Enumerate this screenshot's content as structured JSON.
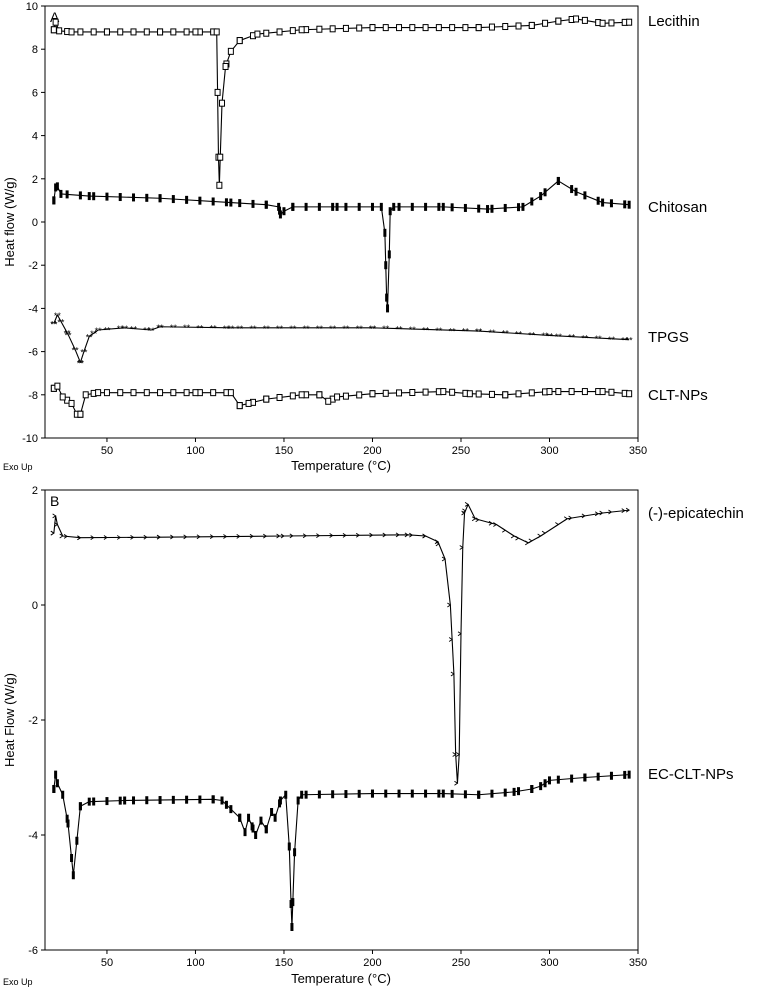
{
  "chart_data": [
    {
      "type": "line",
      "panel_label": "A",
      "xlabel": "Temperature (°C)",
      "ylabel": "Heat flow (W/g)",
      "corner_note": "Exo Up",
      "xlim": [
        15,
        350
      ],
      "ylim": [
        -10,
        10
      ],
      "xticks": [
        0,
        50,
        100,
        150,
        200,
        250,
        300,
        350
      ],
      "yticks": [
        -10,
        -8,
        -6,
        -4,
        -2,
        0,
        2,
        4,
        6,
        8,
        10
      ],
      "grid": false,
      "legend": "none",
      "series": [
        {
          "name": "Lecithin",
          "marker": "square-open",
          "points": [
            [
              20,
              8.9
            ],
            [
              21,
              9.25
            ],
            [
              23,
              8.85
            ],
            [
              30,
              8.8
            ],
            [
              50,
              8.8
            ],
            [
              80,
              8.8
            ],
            [
              100,
              8.8
            ],
            [
              112,
              8.8
            ],
            [
              112.5,
              6
            ],
            [
              113,
              3
            ],
            [
              113.5,
              1.7
            ],
            [
              114,
              3
            ],
            [
              115,
              5.5
            ],
            [
              117,
              7.2
            ],
            [
              120,
              7.9
            ],
            [
              125,
              8.4
            ],
            [
              135,
              8.7
            ],
            [
              160,
              8.9
            ],
            [
              200,
              9.0
            ],
            [
              260,
              9.0
            ],
            [
              290,
              9.1
            ],
            [
              305,
              9.3
            ],
            [
              315,
              9.4
            ],
            [
              330,
              9.2
            ],
            [
              345,
              9.25
            ]
          ]
        },
        {
          "name": "Chitosan",
          "marker": "bar",
          "points": [
            [
              20,
              1.0
            ],
            [
              21,
              1.6
            ],
            [
              22,
              1.65
            ],
            [
              24,
              1.3
            ],
            [
              40,
              1.2
            ],
            [
              80,
              1.1
            ],
            [
              120,
              0.9
            ],
            [
              140,
              0.8
            ],
            [
              147,
              0.7
            ],
            [
              148,
              0.35
            ],
            [
              150,
              0.5
            ],
            [
              155,
              0.7
            ],
            [
              180,
              0.7
            ],
            [
              205,
              0.7
            ],
            [
              207,
              -0.5
            ],
            [
              208,
              -3.5
            ],
            [
              208.5,
              -4.0
            ],
            [
              209.5,
              -1.5
            ],
            [
              210,
              0.5
            ],
            [
              212,
              0.7
            ],
            [
              240,
              0.7
            ],
            [
              265,
              0.6
            ],
            [
              285,
              0.7
            ],
            [
              295,
              1.2
            ],
            [
              305,
              1.9
            ],
            [
              315,
              1.4
            ],
            [
              330,
              0.9
            ],
            [
              345,
              0.8
            ]
          ]
        },
        {
          "name": "TPGS",
          "marker": "asterisk",
          "points": [
            [
              20,
              -4.7
            ],
            [
              22,
              -4.3
            ],
            [
              24,
              -4.6
            ],
            [
              28,
              -5.2
            ],
            [
              32,
              -5.9
            ],
            [
              35,
              -6.5
            ],
            [
              37,
              -6.0
            ],
            [
              40,
              -5.3
            ],
            [
              45,
              -5.0
            ],
            [
              60,
              -4.9
            ],
            [
              75,
              -5.0
            ],
            [
              80,
              -4.85
            ],
            [
              120,
              -4.9
            ],
            [
              200,
              -4.9
            ],
            [
              260,
              -5.05
            ],
            [
              300,
              -5.25
            ],
            [
              345,
              -5.45
            ]
          ]
        },
        {
          "name": "CLT-NPs",
          "marker": "square-open",
          "points": [
            [
              20,
              -7.7
            ],
            [
              22,
              -7.6
            ],
            [
              25,
              -8.1
            ],
            [
              30,
              -8.4
            ],
            [
              33,
              -8.9
            ],
            [
              35,
              -8.9
            ],
            [
              38,
              -8.0
            ],
            [
              45,
              -7.9
            ],
            [
              100,
              -7.9
            ],
            [
              120,
              -7.9
            ],
            [
              125,
              -8.5
            ],
            [
              130,
              -8.4
            ],
            [
              140,
              -8.2
            ],
            [
              160,
              -8.0
            ],
            [
              170,
              -8.0
            ],
            [
              175,
              -8.3
            ],
            [
              180,
              -8.1
            ],
            [
              200,
              -7.95
            ],
            [
              240,
              -7.85
            ],
            [
              255,
              -7.95
            ],
            [
              275,
              -8.0
            ],
            [
              300,
              -7.85
            ],
            [
              330,
              -7.85
            ],
            [
              345,
              -7.95
            ]
          ]
        }
      ]
    },
    {
      "type": "line",
      "panel_label": "B",
      "xlabel": "Temperature (°C)",
      "ylabel": "Heat Flow (W/g)",
      "corner_note": "Exo Up",
      "xlim": [
        15,
        350
      ],
      "ylim": [
        -6,
        2
      ],
      "xticks": [
        0,
        50,
        100,
        150,
        200,
        250,
        300,
        350
      ],
      "yticks": [
        -6,
        -4,
        -2,
        0,
        2
      ],
      "grid": false,
      "legend": "none",
      "series": [
        {
          "name": "(-)-epicatechin",
          "marker": "tick",
          "points": [
            [
              20,
              1.25
            ],
            [
              21,
              1.55
            ],
            [
              22,
              1.4
            ],
            [
              25,
              1.2
            ],
            [
              35,
              1.17
            ],
            [
              80,
              1.18
            ],
            [
              150,
              1.2
            ],
            [
              220,
              1.22
            ],
            [
              230,
              1.2
            ],
            [
              237,
              1.1
            ],
            [
              241,
              0.8
            ],
            [
              244,
              0.0
            ],
            [
              246,
              -1.2
            ],
            [
              247,
              -2.6
            ],
            [
              248,
              -3.1
            ],
            [
              249,
              -2.6
            ],
            [
              250,
              -0.5
            ],
            [
              251,
              1.0
            ],
            [
              252,
              1.6
            ],
            [
              254,
              1.75
            ],
            [
              258,
              1.5
            ],
            [
              270,
              1.4
            ],
            [
              280,
              1.2
            ],
            [
              288,
              1.08
            ],
            [
              295,
              1.2
            ],
            [
              310,
              1.5
            ],
            [
              330,
              1.6
            ],
            [
              345,
              1.65
            ]
          ]
        },
        {
          "name": "EC-CLT-NPs",
          "marker": "bar",
          "points": [
            [
              20,
              -3.2
            ],
            [
              21,
              -2.95
            ],
            [
              22,
              -3.1
            ],
            [
              25,
              -3.3
            ],
            [
              28,
              -3.8
            ],
            [
              30,
              -4.4
            ],
            [
              31,
              -4.7
            ],
            [
              33,
              -4.1
            ],
            [
              35,
              -3.5
            ],
            [
              40,
              -3.42
            ],
            [
              60,
              -3.4
            ],
            [
              110,
              -3.38
            ],
            [
              115,
              -3.4
            ],
            [
              120,
              -3.55
            ],
            [
              125,
              -3.7
            ],
            [
              128,
              -3.95
            ],
            [
              130,
              -3.7
            ],
            [
              132,
              -3.85
            ],
            [
              134,
              -4.0
            ],
            [
              137,
              -3.75
            ],
            [
              140,
              -3.9
            ],
            [
              143,
              -3.6
            ],
            [
              145,
              -3.7
            ],
            [
              148,
              -3.4
            ],
            [
              151,
              -3.3
            ],
            [
              153,
              -4.2
            ],
            [
              154,
              -5.2
            ],
            [
              154.5,
              -5.6
            ],
            [
              156,
              -4.3
            ],
            [
              158,
              -3.4
            ],
            [
              160,
              -3.3
            ],
            [
              200,
              -3.28
            ],
            [
              240,
              -3.28
            ],
            [
              260,
              -3.3
            ],
            [
              280,
              -3.25
            ],
            [
              290,
              -3.2
            ],
            [
              295,
              -3.15
            ],
            [
              300,
              -3.05
            ],
            [
              320,
              -3.0
            ],
            [
              345,
              -2.95
            ]
          ]
        }
      ]
    }
  ]
}
